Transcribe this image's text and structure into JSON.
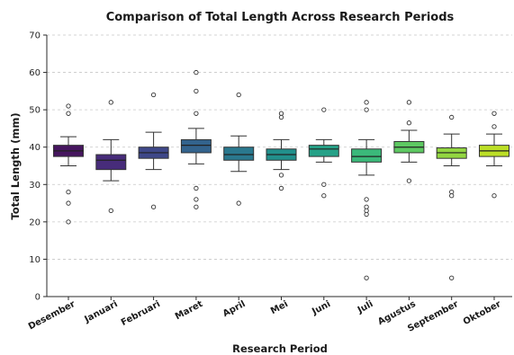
{
  "chart_data": {
    "type": "box",
    "title": "Comparison of Total Length Across Research Periods",
    "xlabel": "Research Period",
    "ylabel": "Total Length (mm)",
    "ylim": [
      0,
      70
    ],
    "yticks": [
      0,
      10,
      20,
      30,
      40,
      50,
      60,
      70
    ],
    "grid": "horizontal dashed",
    "colors": [
      "#46165f",
      "#472c7a",
      "#3f4889",
      "#33638d",
      "#2a788e",
      "#22908c",
      "#25a187",
      "#3bb97a",
      "#5ec962",
      "#93d741",
      "#bcdf27"
    ],
    "categories": [
      "Desember",
      "Januari",
      "Februari",
      "Maret",
      "April",
      "Mei",
      "Juni",
      "Juli",
      "Agustus",
      "September",
      "Oktober"
    ],
    "boxes": [
      {
        "whisker_low": 35,
        "q1": 37.5,
        "median": 39,
        "q3": 40.5,
        "whisker_high": 42.8,
        "outliers": [
          51,
          49,
          28,
          25,
          20
        ]
      },
      {
        "whisker_low": 31,
        "q1": 34,
        "median": 36.5,
        "q3": 38,
        "whisker_high": 42,
        "outliers": [
          52,
          23
        ]
      },
      {
        "whisker_low": 34,
        "q1": 37,
        "median": 38.5,
        "q3": 40,
        "whisker_high": 44,
        "outliers": [
          54,
          24
        ]
      },
      {
        "whisker_low": 35.5,
        "q1": 38.5,
        "median": 40.5,
        "q3": 42,
        "whisker_high": 45,
        "outliers": [
          60,
          55,
          49,
          29,
          26,
          24
        ]
      },
      {
        "whisker_low": 33.5,
        "q1": 36.5,
        "median": 38,
        "q3": 40,
        "whisker_high": 43,
        "outliers": [
          54,
          25
        ]
      },
      {
        "whisker_low": 34,
        "q1": 36.5,
        "median": 38,
        "q3": 39.5,
        "whisker_high": 42,
        "outliers": [
          49,
          48,
          32.5,
          29
        ]
      },
      {
        "whisker_low": 36,
        "q1": 37.5,
        "median": 39.5,
        "q3": 40.5,
        "whisker_high": 42,
        "outliers": [
          50,
          30,
          27
        ]
      },
      {
        "whisker_low": 32.5,
        "q1": 36,
        "median": 37.5,
        "q3": 39.5,
        "whisker_high": 42,
        "outliers": [
          52,
          50,
          26,
          24,
          23,
          22,
          5
        ]
      },
      {
        "whisker_low": 36,
        "q1": 38.5,
        "median": 40,
        "q3": 41.5,
        "whisker_high": 44.5,
        "outliers": [
          52,
          46.5,
          31
        ]
      },
      {
        "whisker_low": 35,
        "q1": 37,
        "median": 38.5,
        "q3": 39.8,
        "whisker_high": 43.5,
        "outliers": [
          48,
          28,
          27,
          5
        ]
      },
      {
        "whisker_low": 35,
        "q1": 37.5,
        "median": 39,
        "q3": 40.5,
        "whisker_high": 43.5,
        "outliers": [
          49,
          45.5,
          27
        ]
      }
    ]
  }
}
